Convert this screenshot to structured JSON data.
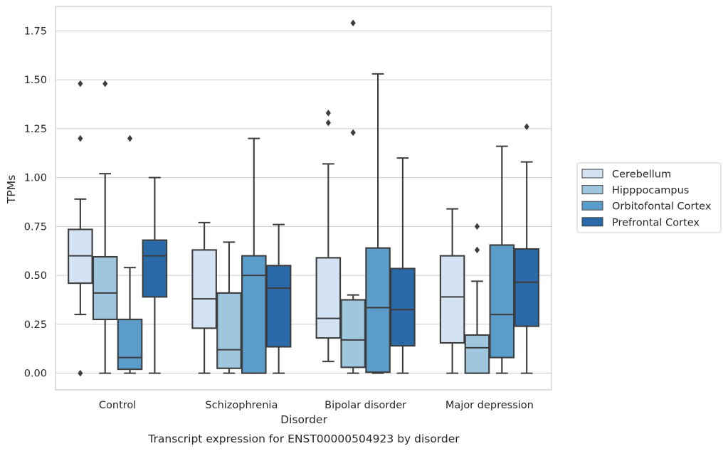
{
  "chart_data": {
    "type": "box",
    "title": "Transcript expression for ENST00000504923 by disorder",
    "xlabel": "Disorder",
    "ylabel": "TPMs",
    "ylim": [
      -0.085,
      1.875
    ],
    "yticks": [
      "0.00",
      "0.25",
      "0.50",
      "0.75",
      "1.00",
      "1.25",
      "1.50",
      "1.75"
    ],
    "grid": true,
    "legend_position": "right",
    "categories": [
      "Control",
      "Schizophrenia",
      "Bipolar disorder",
      "Major depression"
    ],
    "series": [
      {
        "name": "Cerebellum",
        "color": "#d4e3f3",
        "boxes": [
          {
            "whislo": 0.3,
            "q1": 0.46,
            "med": 0.6,
            "q3": 0.735,
            "whishi": 0.89,
            "fliers": [
              1.48,
              1.2,
              0.0
            ]
          },
          {
            "whislo": 0.0,
            "q1": 0.23,
            "med": 0.38,
            "q3": 0.63,
            "whishi": 0.77,
            "fliers": []
          },
          {
            "whislo": 0.06,
            "q1": 0.18,
            "med": 0.28,
            "q3": 0.59,
            "whishi": 1.07,
            "fliers": [
              1.33,
              1.28
            ]
          },
          {
            "whislo": 0.0,
            "q1": 0.155,
            "med": 0.39,
            "q3": 0.6,
            "whishi": 0.84,
            "fliers": []
          }
        ]
      },
      {
        "name": "Hipppocampus",
        "color": "#9ec6de",
        "boxes": [
          {
            "whislo": 0.0,
            "q1": 0.275,
            "med": 0.41,
            "q3": 0.595,
            "whishi": 1.02,
            "fliers": [
              1.48
            ]
          },
          {
            "whislo": 0.0,
            "q1": 0.025,
            "med": 0.12,
            "q3": 0.41,
            "whishi": 0.67,
            "fliers": []
          },
          {
            "whislo": 0.0,
            "q1": 0.03,
            "med": 0.17,
            "q3": 0.375,
            "whishi": 0.4,
            "fliers": [
              1.23,
              1.79
            ]
          },
          {
            "whislo": 0.0,
            "q1": 0.0,
            "med": 0.13,
            "q3": 0.195,
            "whishi": 0.47,
            "fliers": [
              0.75,
              0.63
            ]
          }
        ]
      },
      {
        "name": "Orbitofontal Cortex",
        "color": "#5b9dca",
        "boxes": [
          {
            "whislo": 0.0,
            "q1": 0.02,
            "med": 0.08,
            "q3": 0.275,
            "whishi": 0.54,
            "fliers": [
              1.2
            ]
          },
          {
            "whislo": 0.0,
            "q1": 0.0,
            "med": 0.5,
            "q3": 0.6,
            "whishi": 1.2,
            "fliers": []
          },
          {
            "whislo": 0.0,
            "q1": 0.005,
            "med": 0.335,
            "q3": 0.64,
            "whishi": 1.53,
            "fliers": []
          },
          {
            "whislo": 0.0,
            "q1": 0.08,
            "med": 0.3,
            "q3": 0.655,
            "whishi": 1.16,
            "fliers": []
          }
        ]
      },
      {
        "name": "Prefrontal Cortex",
        "color": "#2a6aa8",
        "boxes": [
          {
            "whislo": 0.0,
            "q1": 0.39,
            "med": 0.6,
            "q3": 0.68,
            "whishi": 1.0,
            "fliers": []
          },
          {
            "whislo": 0.0,
            "q1": 0.135,
            "med": 0.435,
            "q3": 0.55,
            "whishi": 0.76,
            "fliers": []
          },
          {
            "whislo": 0.0,
            "q1": 0.14,
            "med": 0.325,
            "q3": 0.535,
            "whishi": 1.1,
            "fliers": []
          },
          {
            "whislo": 0.0,
            "q1": 0.24,
            "med": 0.465,
            "q3": 0.635,
            "whishi": 1.08,
            "fliers": [
              1.26
            ]
          }
        ]
      }
    ]
  }
}
